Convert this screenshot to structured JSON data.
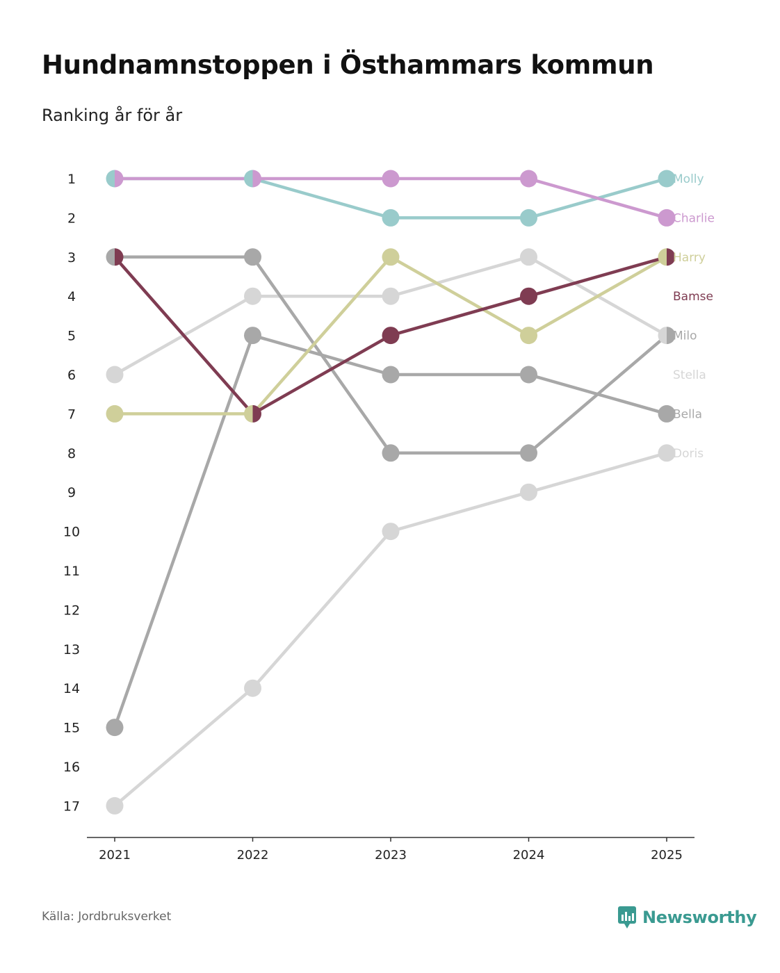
{
  "chart_data": {
    "type": "line",
    "title": "Hundnamnstoppen i Östhammars kommun",
    "subtitle": "Ranking år för år",
    "xlabel": "",
    "ylabel": "",
    "x": [
      "2021",
      "2022",
      "2023",
      "2024",
      "2025"
    ],
    "y_ticks": [
      "1",
      "2",
      "3",
      "4",
      "5",
      "6",
      "7",
      "8",
      "9",
      "10",
      "11",
      "12",
      "13",
      "14",
      "15",
      "16",
      "17"
    ],
    "ylim": [
      1,
      17
    ],
    "y_inverted": true,
    "series": [
      {
        "name": "Doris",
        "color": "#d6d6d6",
        "values": [
          17,
          14,
          10,
          9,
          8
        ]
      },
      {
        "name": "Stella",
        "color": "#d6d6d6",
        "values": [
          6,
          4,
          4,
          3,
          5
        ]
      },
      {
        "name": "Bella",
        "color": "#a8a8a8",
        "values": [
          15,
          5,
          6,
          6,
          7
        ]
      },
      {
        "name": "Milo",
        "color": "#a8a8a8",
        "values": [
          3,
          3,
          8,
          8,
          5
        ]
      },
      {
        "name": "Harry",
        "color": "#cfcf9a",
        "values": [
          7,
          7,
          3,
          5,
          3
        ]
      },
      {
        "name": "Bamse",
        "color": "#7f3c52",
        "values": [
          3,
          7,
          5,
          4,
          3
        ]
      },
      {
        "name": "Molly",
        "color": "#99cbcb",
        "values": [
          1,
          1,
          2,
          2,
          1
        ]
      },
      {
        "name": "Charlie",
        "color": "#cc99cf",
        "values": [
          1,
          1,
          1,
          1,
          2
        ]
      }
    ],
    "labels_order": [
      "Molly",
      "Charlie",
      "Harry",
      "Bamse",
      "Milo",
      "Stella",
      "Bella",
      "Doris"
    ],
    "label_ranks": [
      1,
      2,
      3,
      4,
      5,
      6,
      7,
      8
    ]
  },
  "footer": {
    "source": "Källa: Jordbruksverket",
    "brand": "Newsworthy",
    "brand_color": "#3a9a91"
  }
}
